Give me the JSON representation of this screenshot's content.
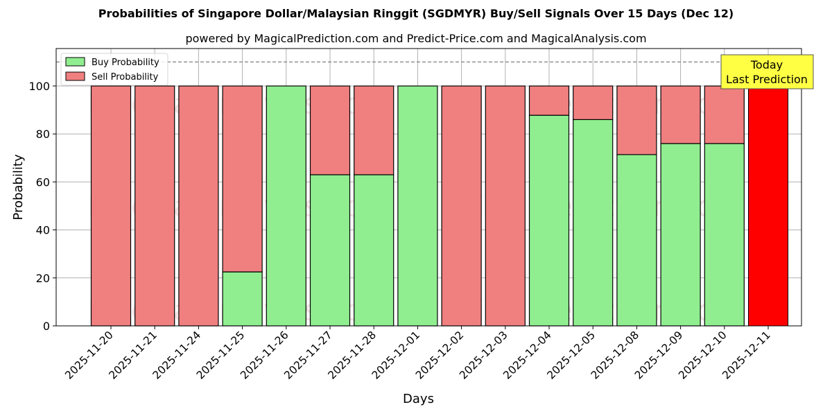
{
  "chart_data": {
    "type": "bar",
    "stacked": true,
    "title": "Probabilities of Singapore Dollar/Malaysian Ringgit (SGDMYR) Buy/Sell Signals Over 15 Days (Dec 12)",
    "subtitle": "powered by MagicalPrediction.com and Predict-Price.com and MagicalAnalysis.com",
    "xlabel": "Days",
    "ylabel": "Probability",
    "ylim": [
      0,
      115
    ],
    "yticks": [
      0,
      20,
      40,
      60,
      80,
      100
    ],
    "grid": true,
    "reference_line": 110,
    "categories": [
      "2025-11-20",
      "2025-11-21",
      "2025-11-24",
      "2025-11-25",
      "2025-11-26",
      "2025-11-27",
      "2025-11-28",
      "2025-12-01",
      "2025-12-02",
      "2025-12-03",
      "2025-12-04",
      "2025-12-05",
      "2025-12-08",
      "2025-12-09",
      "2025-12-10",
      "2025-12-11"
    ],
    "series": [
      {
        "name": "Buy Probability",
        "color": "#90ee90",
        "values": [
          0,
          0,
          0,
          22.5,
          100,
          63,
          63,
          100,
          0,
          0,
          87.8,
          86,
          71.4,
          76,
          76,
          0
        ]
      },
      {
        "name": "Sell Probability",
        "color": "#f08080",
        "values": [
          100,
          100,
          100,
          77.5,
          0,
          37,
          37,
          0,
          100,
          100,
          12.2,
          14,
          28.6,
          24,
          24,
          100
        ]
      }
    ],
    "highlight": {
      "category": "2025-12-11",
      "color": "#ff0000",
      "value": 100
    },
    "legend": {
      "position": "upper left",
      "entries": [
        "Buy Probability",
        "Sell Probability"
      ]
    },
    "annotation": {
      "text_line1": "Today",
      "text_line2": "Last Prediction",
      "bg": "#ffff44"
    },
    "watermarks": [
      "MagicalAnalysis.com",
      "MagicalPrediction.com"
    ]
  }
}
